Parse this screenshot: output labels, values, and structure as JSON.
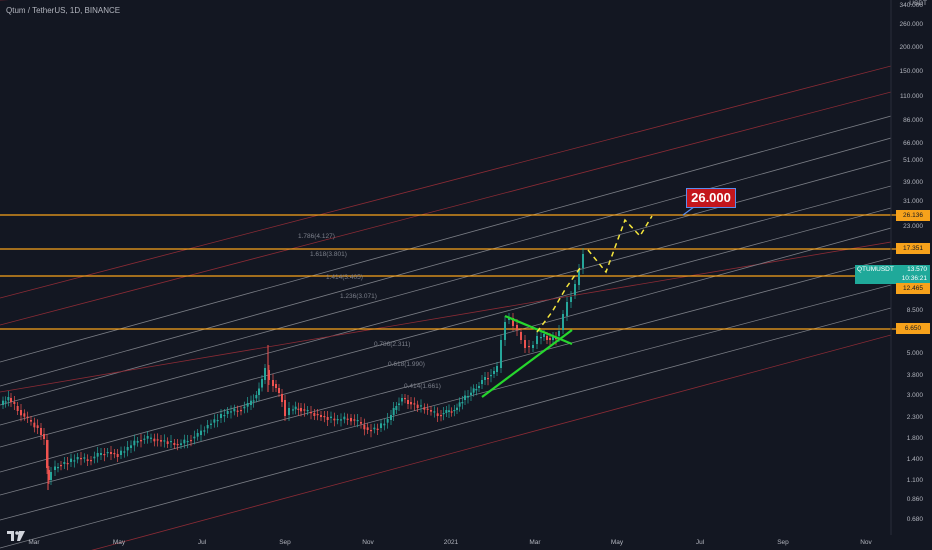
{
  "header": {
    "title": "Qtum / TetherUS, 1D, BINANCE"
  },
  "axis": {
    "currency": "USDT",
    "price_ticks": [
      "340.000",
      "260.000",
      "200.000",
      "150.000",
      "110.000",
      "86.000",
      "66.000",
      "51.000",
      "39.000",
      "31.000",
      "23.000",
      "8.500",
      "5.000",
      "3.800",
      "3.000",
      "2.300",
      "1.800",
      "1.400",
      "1.100",
      "0.860",
      "0.680"
    ],
    "time_ticks": [
      "Mar",
      "May",
      "Jul",
      "Sep",
      "Nov",
      "2021",
      "Mar",
      "May",
      "Jul",
      "Sep",
      "Nov"
    ]
  },
  "levels": [
    {
      "label": "26.136"
    },
    {
      "label": "17.351"
    },
    {
      "label": "12.465"
    },
    {
      "label": "6.650"
    }
  ],
  "current": {
    "symbol": "QTUMUSDT",
    "price": "13.570",
    "countdown": "10:36:21"
  },
  "target": {
    "label": "26.000"
  },
  "fib_labels": [
    "1.786(4.127)",
    "1.618(3.801)",
    "1.414(3.405)",
    "1.236(3.071)",
    "0.786(2.311)",
    "0.618(1.990)",
    "0.414(1.661)"
  ],
  "colors": {
    "background": "#131722",
    "level_line": "#f7a21b",
    "up_candle": "#26a69a",
    "down_candle": "#ef5350",
    "triangle": "#26d62d",
    "projection": "#f5e63d",
    "current_price": "#1fa99a",
    "target_box": "#c4161c"
  },
  "chart_data": {
    "type": "candlestick",
    "symbol": "QTUMUSDT",
    "exchange": "BINANCE",
    "interval": "1D",
    "price_scale": "log",
    "last_price": 13.57,
    "horizontal_levels": [
      26.136,
      17.351,
      12.465,
      6.65
    ],
    "projected_target": 26.0,
    "fib_channel_levels": [
      1.786,
      1.618,
      1.414,
      1.236,
      0.786,
      0.618,
      0.414
    ]
  }
}
